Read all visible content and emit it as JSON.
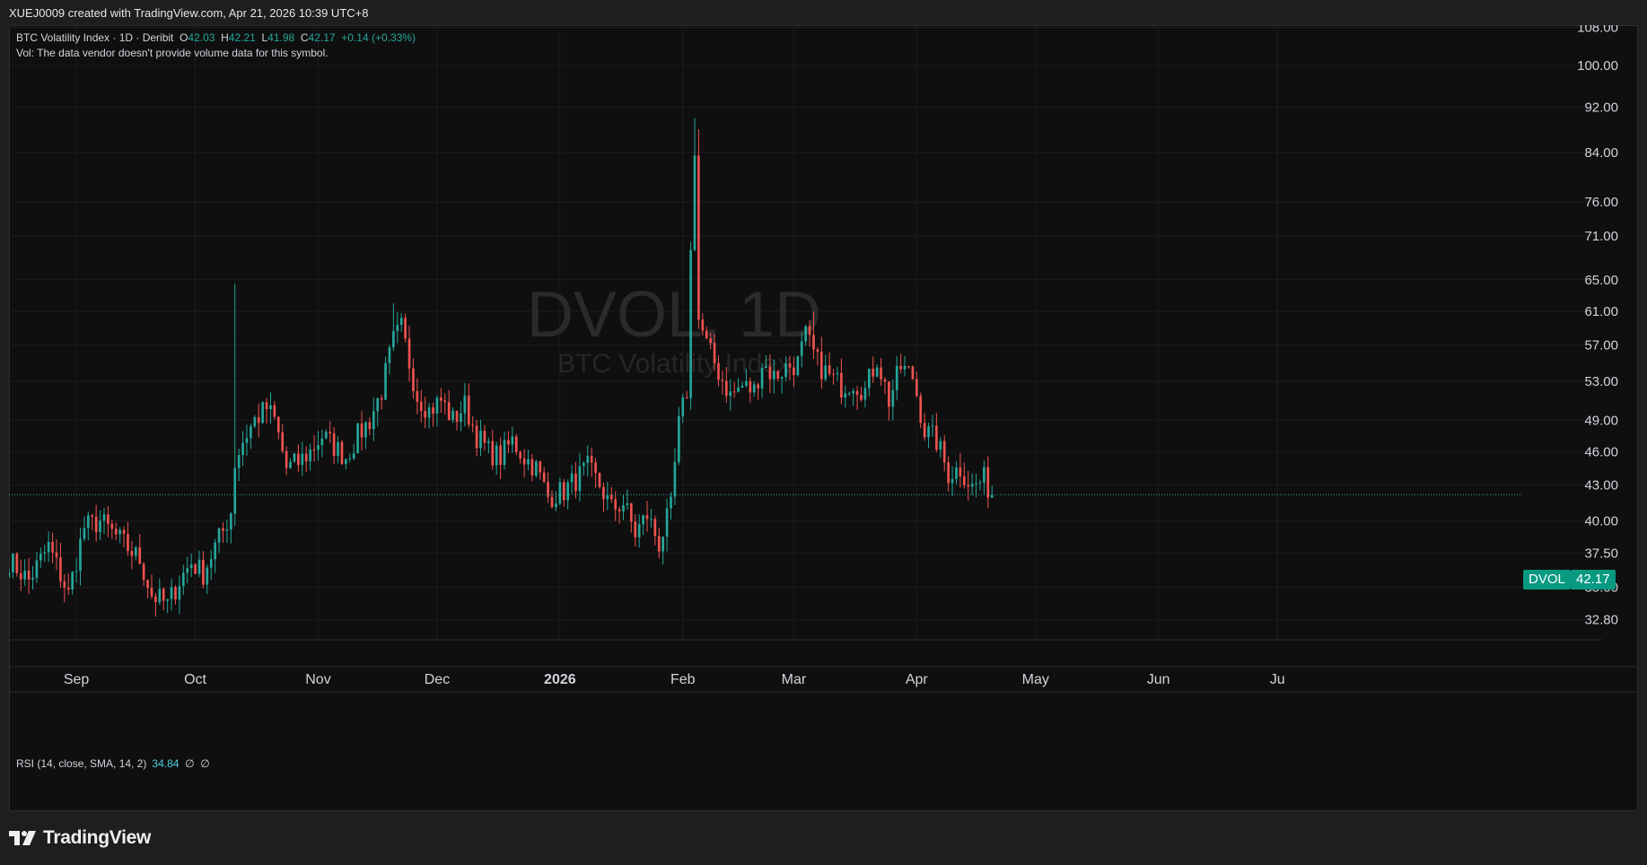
{
  "header": {
    "created": "XUEJ0009 created with TradingView.com, Apr 21, 2026 10:39 UTC+8"
  },
  "legend": {
    "symbol": "BTC Volatility Index · 1D · Deribit",
    "o_label": "O",
    "o": "42.03",
    "h_label": "H",
    "h": "42.21",
    "l_label": "L",
    "l": "41.98",
    "c_label": "C",
    "c": "42.17",
    "change": "+0.14 (+0.33%)",
    "vol_note": "Vol: The data vendor doesn't provide volume data for this symbol."
  },
  "watermark": {
    "ticker": "DVOL, 1D",
    "name": "BTC Volatility Index"
  },
  "rsi": {
    "label": "RSI (14, close, SMA, 14, 2)",
    "value": "34.84",
    "na1": "∅",
    "na2": "∅"
  },
  "price_tag": {
    "symbol": "DVOL",
    "value": "42.17"
  },
  "footer": {
    "brand": "TradingView"
  },
  "colors": {
    "up": "#26a69a",
    "down": "#ef5350",
    "tag": "#089981",
    "background": "#0f0f0f",
    "grid": "#1c1c1c",
    "rsi": "#4dd0e1"
  },
  "chart_data": {
    "type": "candlestick",
    "yscale": "log",
    "ylim": [
      31.5,
      108.5
    ],
    "yticks": [
      "108.00",
      "100.00",
      "92.00",
      "84.00",
      "76.00",
      "71.00",
      "65.00",
      "61.00",
      "57.00",
      "53.00",
      "49.00",
      "46.00",
      "43.00",
      "40.00",
      "37.50",
      "35.00",
      "32.80"
    ],
    "xticks": [
      "Sep",
      "Oct",
      "Nov",
      "Dec",
      "2026",
      "Feb",
      "Mar",
      "Apr",
      "May",
      "Jun",
      "Jul"
    ],
    "xticks_display": [
      "Sep",
      "Oct",
      "Nov",
      "Dec",
      "2026",
      "Feb",
      "Mar",
      "Apr",
      "May",
      "Jun",
      "Ju"
    ],
    "x_range": [
      "2025-08-15",
      "2026-07-15"
    ],
    "grid": true,
    "last_close": 42.17,
    "close_path": [
      [
        "2025-08-15",
        37.0
      ],
      [
        "2025-08-20",
        35.5
      ],
      [
        "2025-08-25",
        38.0
      ],
      [
        "2025-08-30",
        34.5
      ],
      [
        "2025-09-03",
        39.5
      ],
      [
        "2025-09-07",
        40.0
      ],
      [
        "2025-09-12",
        38.5
      ],
      [
        "2025-09-17",
        37.0
      ],
      [
        "2025-09-20",
        34.5
      ],
      [
        "2025-09-24",
        33.8
      ],
      [
        "2025-09-27",
        35.5
      ],
      [
        "2025-09-30",
        36.8
      ],
      [
        "2025-10-03",
        36.0
      ],
      [
        "2025-10-06",
        38.0
      ],
      [
        "2025-10-08",
        39.2
      ],
      [
        "2025-10-10",
        40.8
      ],
      [
        "2025-10-11",
        45.0
      ],
      [
        "2025-10-13",
        47.0
      ],
      [
        "2025-10-16",
        49.0
      ],
      [
        "2025-10-19",
        50.2
      ],
      [
        "2025-10-21",
        49.0
      ],
      [
        "2025-10-24",
        44.5
      ],
      [
        "2025-10-27",
        45.0
      ],
      [
        "2025-10-30",
        46.0
      ],
      [
        "2025-11-02",
        47.5
      ],
      [
        "2025-11-05",
        46.5
      ],
      [
        "2025-11-08",
        45.5
      ],
      [
        "2025-11-11",
        47.5
      ],
      [
        "2025-11-14",
        49.0
      ],
      [
        "2025-11-17",
        52.0
      ],
      [
        "2025-11-20",
        57.5
      ],
      [
        "2025-11-22",
        59.0
      ],
      [
        "2025-11-24",
        55.0
      ],
      [
        "2025-11-26",
        51.5
      ],
      [
        "2025-11-29",
        50.0
      ],
      [
        "2025-12-02",
        51.0
      ],
      [
        "2025-12-05",
        49.0
      ],
      [
        "2025-12-08",
        50.5
      ],
      [
        "2025-12-11",
        47.5
      ],
      [
        "2025-12-14",
        46.0
      ],
      [
        "2025-12-17",
        45.5
      ],
      [
        "2025-12-20",
        47.0
      ],
      [
        "2025-12-23",
        45.5
      ],
      [
        "2025-12-26",
        44.5
      ],
      [
        "2025-12-29",
        42.0
      ],
      [
        "2026-01-02",
        42.5
      ],
      [
        "2026-01-05",
        43.5
      ],
      [
        "2026-01-08",
        44.5
      ],
      [
        "2026-01-11",
        43.0
      ],
      [
        "2026-01-14",
        41.0
      ],
      [
        "2026-01-17",
        41.5
      ],
      [
        "2026-01-20",
        39.0
      ],
      [
        "2026-01-23",
        40.5
      ],
      [
        "2026-01-26",
        38.2
      ],
      [
        "2026-01-29",
        41.0
      ],
      [
        "2026-01-31",
        48.5
      ],
      [
        "2026-02-02",
        52.0
      ],
      [
        "2026-02-04",
        85.0
      ],
      [
        "2026-02-05",
        60.0
      ],
      [
        "2026-02-07",
        57.0
      ],
      [
        "2026-02-10",
        54.0
      ],
      [
        "2026-02-13",
        51.5
      ],
      [
        "2026-02-16",
        52.5
      ],
      [
        "2026-02-19",
        52.0
      ],
      [
        "2026-02-21",
        55.0
      ],
      [
        "2026-02-24",
        53.5
      ],
      [
        "2026-02-27",
        54.5
      ],
      [
        "2026-03-02",
        55.0
      ],
      [
        "2026-03-04",
        58.0
      ],
      [
        "2026-03-07",
        55.0
      ],
      [
        "2026-03-10",
        53.5
      ],
      [
        "2026-03-13",
        52.5
      ],
      [
        "2026-03-16",
        53.0
      ],
      [
        "2026-03-19",
        52.0
      ],
      [
        "2026-03-22",
        55.5
      ],
      [
        "2026-03-25",
        51.0
      ],
      [
        "2026-03-28",
        54.5
      ],
      [
        "2026-03-31",
        53.5
      ],
      [
        "2026-04-03",
        48.0
      ],
      [
        "2026-04-06",
        47.0
      ],
      [
        "2026-04-09",
        44.0
      ],
      [
        "2026-04-12",
        44.5
      ],
      [
        "2026-04-15",
        42.8
      ],
      [
        "2026-04-18",
        43.5
      ],
      [
        "2026-04-20",
        42.17
      ]
    ]
  }
}
